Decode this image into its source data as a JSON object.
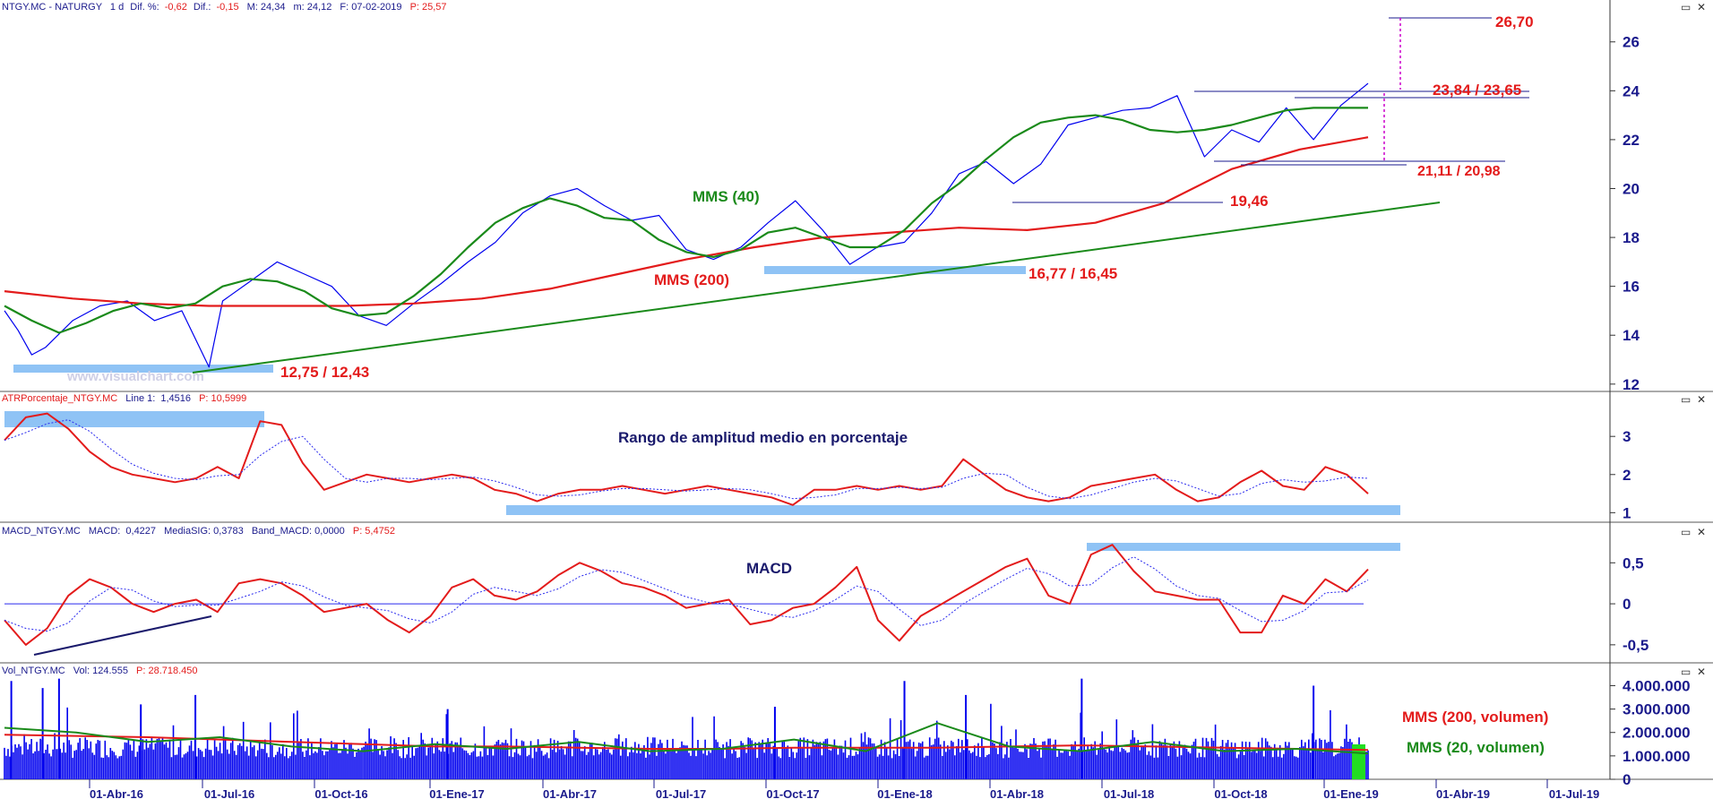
{
  "chart_data": [
    {
      "type": "line",
      "header": {
        "symbol": "NTGY.MC - NATURGY",
        "timeframe": "1 d",
        "diff_pct_label": "Dif. %:",
        "diff_pct": "-0,62",
        "diff_label": "Dif.:",
        "diff": "-0,15",
        "max": "M: 24,34",
        "min": "m: 24,12",
        "date": "F: 07-02-2019",
        "p": "P: 25,57"
      },
      "y_ticks": [
        "26",
        "24",
        "22",
        "20",
        "18",
        "16",
        "14",
        "12"
      ],
      "ylim": [
        11.7,
        27.2
      ],
      "x_ticks": [
        "01-Abr-16",
        "01-Jul-16",
        "01-Oct-16",
        "01-Ene-17",
        "01-Abr-17",
        "01-Jul-17",
        "01-Oct-17",
        "01-Ene-18",
        "01-Abr-18",
        "01-Jul-18",
        "01-Oct-18",
        "01-Ene-19",
        "01-Abr-19",
        "01-Jul-19"
      ],
      "series": [
        {
          "name": "MMS (40)",
          "color": "#1a8a1a",
          "t": [
            0,
            0.02,
            0.04,
            0.06,
            0.08,
            0.1,
            0.12,
            0.14,
            0.16,
            0.18,
            0.2,
            0.22,
            0.24,
            0.26,
            0.28,
            0.3,
            0.32,
            0.34,
            0.36,
            0.38,
            0.4,
            0.42,
            0.44,
            0.46,
            0.48,
            0.5,
            0.52,
            0.54,
            0.56,
            0.58,
            0.6,
            0.62,
            0.64,
            0.66,
            0.68,
            0.7,
            0.72,
            0.74,
            0.76,
            0.78,
            0.8,
            0.82,
            0.84,
            0.86,
            0.88,
            0.9,
            0.92,
            0.94,
            0.96,
            0.98,
            1.0
          ],
          "values": [
            15.2,
            14.6,
            14.1,
            14.5,
            15.0,
            15.3,
            15.1,
            15.3,
            16.0,
            16.3,
            16.2,
            15.8,
            15.1,
            14.8,
            14.9,
            15.6,
            16.5,
            17.6,
            18.6,
            19.2,
            19.6,
            19.3,
            18.8,
            18.7,
            17.9,
            17.4,
            17.2,
            17.5,
            18.2,
            18.4,
            18.0,
            17.6,
            17.6,
            18.3,
            19.4,
            20.2,
            21.2,
            22.1,
            22.7,
            22.9,
            23.0,
            22.8,
            22.4,
            22.3,
            22.4,
            22.6,
            22.9,
            23.2,
            23.3,
            23.3,
            23.3
          ]
        },
        {
          "name": "MMS (200)",
          "color": "#e31b1b",
          "t": [
            0,
            0.05,
            0.1,
            0.15,
            0.2,
            0.25,
            0.3,
            0.35,
            0.4,
            0.45,
            0.5,
            0.55,
            0.6,
            0.65,
            0.7,
            0.75,
            0.8,
            0.85,
            0.9,
            0.95,
            1.0
          ],
          "values": [
            15.8,
            15.5,
            15.3,
            15.2,
            15.2,
            15.2,
            15.3,
            15.5,
            15.9,
            16.5,
            17.1,
            17.6,
            18.0,
            18.2,
            18.4,
            18.3,
            18.6,
            19.4,
            20.8,
            21.6,
            22.1
          ]
        },
        {
          "name": "",
          "color": "#0000ee",
          "t": [
            0,
            0.01,
            0.02,
            0.03,
            0.05,
            0.07,
            0.09,
            0.11,
            0.13,
            0.15,
            0.16,
            0.18,
            0.2,
            0.22,
            0.24,
            0.26,
            0.28,
            0.3,
            0.32,
            0.34,
            0.36,
            0.38,
            0.4,
            0.42,
            0.44,
            0.46,
            0.48,
            0.5,
            0.52,
            0.54,
            0.56,
            0.58,
            0.6,
            0.62,
            0.64,
            0.66,
            0.68,
            0.7,
            0.72,
            0.74,
            0.76,
            0.78,
            0.8,
            0.82,
            0.84,
            0.86,
            0.88,
            0.9,
            0.92,
            0.94,
            0.96,
            0.98,
            1.0
          ],
          "values": [
            15.0,
            14.2,
            13.2,
            13.5,
            14.6,
            15.2,
            15.4,
            14.6,
            15.0,
            12.7,
            15.4,
            16.2,
            17.0,
            16.5,
            16.0,
            14.8,
            14.4,
            15.3,
            16.1,
            17.0,
            17.8,
            19.0,
            19.7,
            20.0,
            19.3,
            18.7,
            18.9,
            17.5,
            17.1,
            17.6,
            18.6,
            19.5,
            18.3,
            16.9,
            17.6,
            17.8,
            19.0,
            20.6,
            21.1,
            20.2,
            21.0,
            22.6,
            22.9,
            23.2,
            23.3,
            23.8,
            21.3,
            22.4,
            21.9,
            23.3,
            22.0,
            23.4,
            24.3
          ]
        }
      ],
      "levels": [
        {
          "label": "26,70",
          "value": 26.7
        },
        {
          "label": "23,84 / 23,65",
          "value": 23.8
        },
        {
          "label": "21,11 / 20,98",
          "value": 21.0
        },
        {
          "label": "19,46",
          "value": 19.46
        },
        {
          "label": "16,77 / 16,45",
          "value": 16.6
        },
        {
          "label": "12,75 / 12,43",
          "value": 12.6
        }
      ],
      "annotations": {
        "mms40": "MMS (40)",
        "mms200": "MMS (200)",
        "watermark": "www.visualchart.com"
      }
    },
    {
      "type": "line",
      "header": {
        "name": "ATRPorcentaje_NTGY.MC",
        "line_label": "Line 1:",
        "line": "1,4516",
        "p": "P: 10,5999"
      },
      "title": "Rango de amplitud medio en porcentaje",
      "y_ticks": [
        "3",
        "2",
        "1"
      ],
      "ylim": [
        0.75,
        3.85
      ],
      "values": [
        2.9,
        3.5,
        3.6,
        3.2,
        2.6,
        2.2,
        2.0,
        1.9,
        1.8,
        1.9,
        2.2,
        1.9,
        3.4,
        3.3,
        2.3,
        1.6,
        1.8,
        2.0,
        1.9,
        1.8,
        1.9,
        2.0,
        1.9,
        1.6,
        1.5,
        1.3,
        1.5,
        1.6,
        1.6,
        1.7,
        1.6,
        1.5,
        1.6,
        1.7,
        1.6,
        1.5,
        1.4,
        1.2,
        1.6,
        1.6,
        1.7,
        1.6,
        1.7,
        1.6,
        1.7,
        2.4,
        2.0,
        1.6,
        1.4,
        1.3,
        1.4,
        1.7,
        1.8,
        1.9,
        2.0,
        1.6,
        1.3,
        1.4,
        1.8,
        2.1,
        1.7,
        1.6,
        2.2,
        2.0,
        1.5
      ]
    },
    {
      "type": "line",
      "header": {
        "name": "MACD_NTGY.MC",
        "macd_label": "MACD:",
        "macd": "0,4227",
        "sig": "MediaSIG: 0,3783",
        "band": "Band_MACD: 0,0000",
        "p": "P: 5,4752"
      },
      "title": "MACD",
      "y_ticks": [
        "0,5",
        "0",
        "-0,5"
      ],
      "ylim": [
        -0.72,
        0.82
      ],
      "values": [
        -0.2,
        -0.5,
        -0.3,
        0.1,
        0.3,
        0.2,
        0.0,
        -0.1,
        0.0,
        0.05,
        -0.1,
        0.25,
        0.3,
        0.25,
        0.1,
        -0.1,
        -0.05,
        0.0,
        -0.2,
        -0.35,
        -0.15,
        0.2,
        0.3,
        0.1,
        0.05,
        0.15,
        0.35,
        0.5,
        0.4,
        0.25,
        0.2,
        0.1,
        -0.05,
        0.0,
        0.05,
        -0.25,
        -0.2,
        -0.05,
        0.0,
        0.2,
        0.45,
        -0.2,
        -0.45,
        -0.15,
        0.0,
        0.15,
        0.3,
        0.45,
        0.55,
        0.1,
        0.0,
        0.6,
        0.72,
        0.4,
        0.15,
        0.1,
        0.05,
        0.05,
        -0.35,
        -0.35,
        0.1,
        0.0,
        0.3,
        0.15,
        0.42
      ]
    },
    {
      "type": "bar",
      "header": {
        "name": "Vol_NTGY.MC",
        "vol": "Vol: 124.555",
        "p": "P: 28.718.450"
      },
      "y_ticks": [
        "4.000.000",
        "3.000.000",
        "2.000.000",
        "1.000.000",
        "0"
      ],
      "ylim": [
        0,
        4400000
      ],
      "volume_peaks": [
        {
          "t": 0.005,
          "v": 4200000
        },
        {
          "t": 0.028,
          "v": 3900000
        },
        {
          "t": 0.04,
          "v": 4300000
        },
        {
          "t": 0.1,
          "v": 3200000
        },
        {
          "t": 0.14,
          "v": 3600000
        },
        {
          "t": 0.325,
          "v": 3000000
        },
        {
          "t": 0.565,
          "v": 3100000
        },
        {
          "t": 0.66,
          "v": 4200000
        },
        {
          "t": 0.705,
          "v": 3600000
        },
        {
          "t": 0.79,
          "v": 4300000
        },
        {
          "t": 0.96,
          "v": 4000000
        }
      ],
      "ma_series": [
        {
          "name": "MMS (200, volumen)",
          "color": "#e31b1b",
          "values": [
            1.9,
            1.85,
            1.8,
            1.7,
            1.6,
            1.5,
            1.4,
            1.4,
            1.35,
            1.3,
            1.3,
            1.35,
            1.35,
            1.35,
            1.4,
            1.45,
            1.4,
            1.35,
            1.3,
            1.25
          ]
        },
        {
          "name": "MMS (20, volumen)",
          "color": "#1a8a1a",
          "values": [
            2.2,
            2.0,
            1.6,
            1.8,
            1.4,
            1.2,
            1.5,
            1.3,
            1.6,
            1.2,
            1.3,
            1.7,
            1.2,
            2.4,
            1.4,
            1.2,
            1.6,
            1.2,
            1.3,
            1.1
          ]
        }
      ],
      "labels": {
        "ma200": "MMS (200, volumen)",
        "ma20": "MMS (20, volumen)"
      }
    }
  ],
  "window_buttons": [
    "▭",
    "✕"
  ],
  "colors": {
    "price": "#0000ee",
    "mms40": "#1a8a1a",
    "mms200": "#e31b1b",
    "band": "#8fc3f5",
    "volume": "#0000ee",
    "axis_text": "#1a1a8c",
    "divider": "#6b6bd6"
  }
}
